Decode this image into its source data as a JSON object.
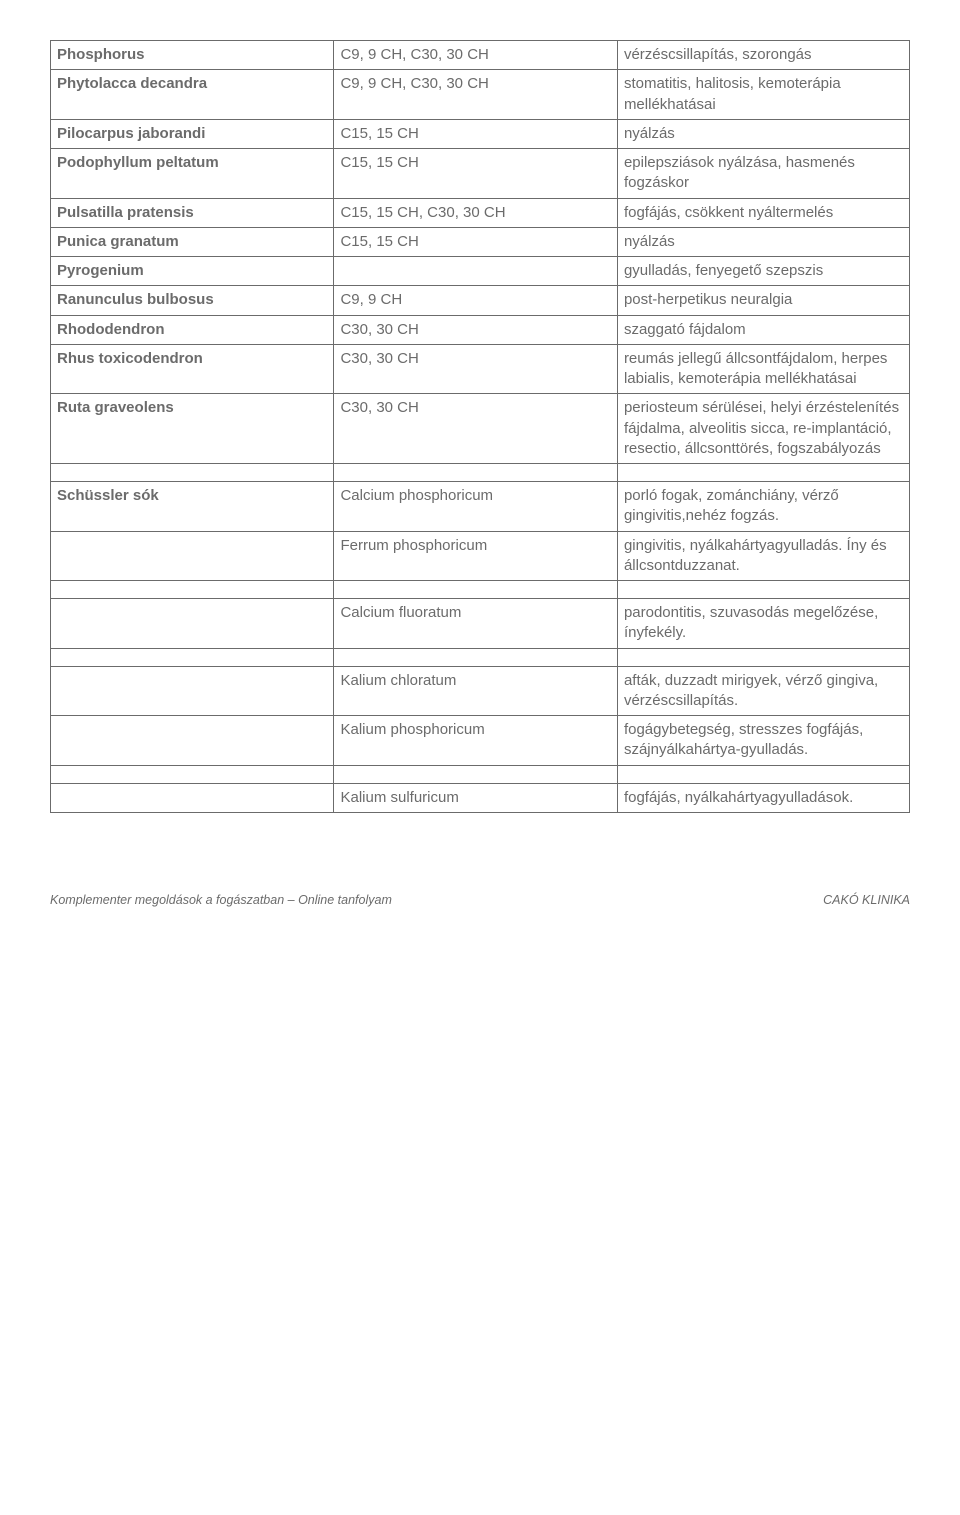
{
  "colors": {
    "text": "#6b6b6b",
    "border": "#6b6b6b",
    "background": "#ffffff"
  },
  "typography": {
    "body_fontsize": 15,
    "footer_fontsize": 12.5,
    "font_family": "Verdana"
  },
  "layout": {
    "col_widths_pct": [
      33,
      33,
      34
    ]
  },
  "rows": [
    {
      "c1": "Phosphorus",
      "c1_bold": true,
      "c2": "C9, 9 CH, C30, 30 CH",
      "c3": "vérzéscsillapítás, szorongás"
    },
    {
      "c1": "Phytolacca decandra",
      "c1_bold": true,
      "c2": "C9, 9 CH, C30, 30 CH",
      "c3": "stomatitis, halitosis, kemoterápia mellékhatásai"
    },
    {
      "c1": "Pilocarpus jaborandi",
      "c1_bold": true,
      "c2": "C15, 15 CH",
      "c3": "nyálzás"
    },
    {
      "c1": "Podophyllum peltatum",
      "c1_bold": true,
      "c2": "C15, 15 CH",
      "c3": "epilepsziások nyálzása, hasmenés fogzáskor"
    },
    {
      "c1": "Pulsatilla pratensis",
      "c1_bold": true,
      "c2": "C15, 15 CH, C30, 30 CH",
      "c3": "fogfájás, csökkent nyáltermelés"
    },
    {
      "c1": "Punica granatum",
      "c1_bold": true,
      "c2": "C15, 15 CH",
      "c3": "nyálzás"
    },
    {
      "c1": "Pyrogenium",
      "c1_bold": true,
      "c2": "",
      "c3": "gyulladás, fenyegető szepszis"
    },
    {
      "c1": "Ranunculus bulbosus",
      "c1_bold": true,
      "c2": "C9, 9 CH",
      "c3": "post-herpetikus neuralgia"
    },
    {
      "c1": "Rhododendron",
      "c1_bold": true,
      "c2": "C30, 30 CH",
      "c3": "szaggató fájdalom"
    },
    {
      "c1": "Rhus toxicodendron",
      "c1_bold": true,
      "c2": "C30, 30 CH",
      "c3": "reumás jellegű állcsontfájdalom, herpes labialis, kemoterápia mellékhatásai"
    },
    {
      "c1": "Ruta graveolens",
      "c1_bold": true,
      "c2": "C30, 30 CH",
      "c3": "periosteum sérülései, helyi érzéstelenítés fájdalma, alveolitis sicca, re-implantáció, resectio, állcsonttörés, fogszabályozás"
    }
  ],
  "rows2": [
    {
      "c1": "Schüssler sók",
      "c1_bold": true,
      "c2": "Calcium phosphoricum",
      "c3": "porló fogak, zománchiány, vérző gingivitis,nehéz fogzás."
    },
    {
      "c1": "",
      "c1_bold": false,
      "c2": "Ferrum phosphoricum",
      "c3": "gingivitis, nyálkahártyagyulladás. Íny és állcsontduzzanat."
    }
  ],
  "rows3": [
    {
      "c1": "",
      "c1_bold": false,
      "c2": "Calcium fluoratum",
      "c3": "parodontitis, szuvasodás megelőzése, ínyfekély."
    }
  ],
  "rows4": [
    {
      "c1": "",
      "c1_bold": false,
      "c2": "Kalium chloratum",
      "c3": "afták, duzzadt mirigyek, vérző gingiva, vérzéscsillapítás."
    },
    {
      "c1": "",
      "c1_bold": false,
      "c2": "Kalium phosphoricum",
      "c3": "fogágybetegség, stresszes fogfájás, szájnyálkahártya-gyulladás."
    }
  ],
  "rows5": [
    {
      "c1": "",
      "c1_bold": false,
      "c2": "Kalium sulfuricum",
      "c3": "fogfájás, nyálkahártyagyulladások."
    }
  ],
  "footer": {
    "left": "Komplementer megoldások a fogászatban – Online tanfolyam",
    "right": "CAKÓ KLINIKA"
  }
}
